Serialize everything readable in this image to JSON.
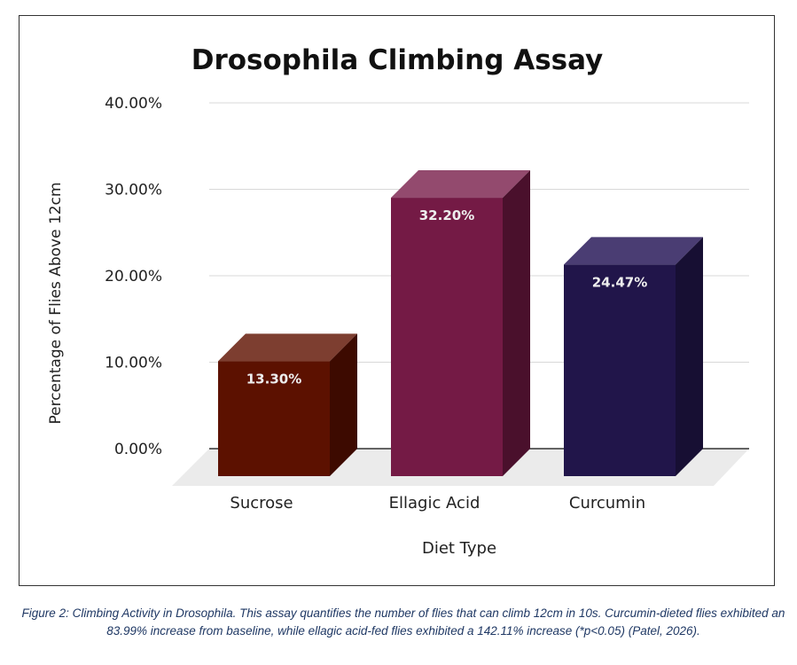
{
  "chart_data": {
    "type": "bar",
    "style": "3d",
    "title": "Drosophila Climbing Assay",
    "xlabel": "Diet Type",
    "ylabel": "Percentage of Flies Above 12cm",
    "ylim": [
      0,
      40
    ],
    "yticks": [
      "0.00%",
      "10.00%",
      "20.00%",
      "30.00%",
      "40.00%"
    ],
    "grid": true,
    "categories": [
      "Sucrose",
      "Ellagic Acid",
      "Curcumin"
    ],
    "values": [
      13.3,
      32.2,
      24.47
    ],
    "data_labels": [
      "13.30%",
      "32.20%",
      "24.47%"
    ],
    "colors": [
      {
        "front": "#5c1100",
        "side": "#3d0a00",
        "top": "#7d3e30"
      },
      {
        "front": "#741a45",
        "side": "#4a102c",
        "top": "#934a6e"
      },
      {
        "front": "#21154a",
        "side": "#170f33",
        "top": "#4a3d73"
      }
    ]
  },
  "caption": "Figure 2: Climbing Activity in Drosophila. This assay quantifies the number of flies that can climb 12cm in 10s. Curcumin-dieted flies exhibited an 83.99% increase from baseline, while ellagic acid-fed flies exhibited a 142.11% increase (*p<0.05) (Patel, 2026)."
}
